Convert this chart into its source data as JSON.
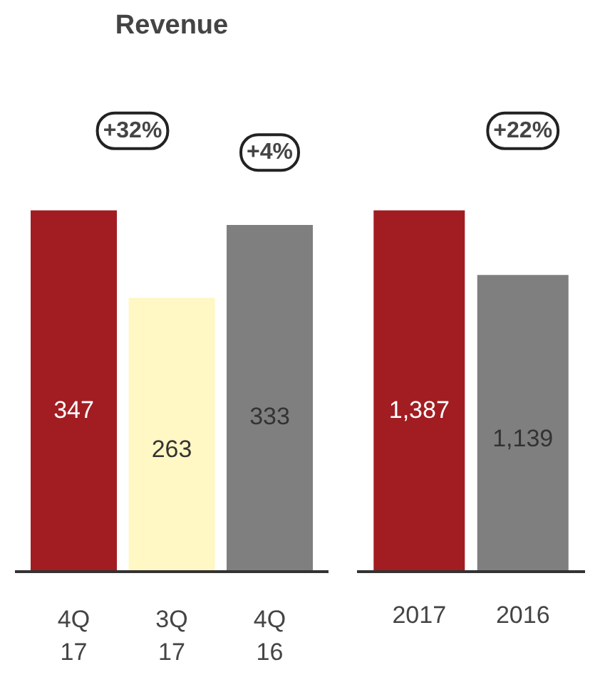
{
  "chart_data": [
    {
      "type": "bar",
      "title": "Revenue",
      "categories": [
        "4Q\n17",
        "3Q\n17",
        "4Q\n16"
      ],
      "values": [
        347,
        263,
        333
      ],
      "colors": [
        "#a11d21",
        "#fff7c4",
        "#7f7f7f"
      ],
      "data_labels": true,
      "grid": false,
      "annotations": [
        "+32%",
        "+4%"
      ]
    },
    {
      "type": "bar",
      "categories": [
        "2017",
        "2016"
      ],
      "values": [
        1387,
        1139
      ],
      "colors": [
        "#a11d21",
        "#7f7f7f"
      ],
      "value_labels": [
        "1,387",
        "1,139"
      ],
      "grid": false,
      "annotations": [
        "+22%"
      ]
    }
  ]
}
